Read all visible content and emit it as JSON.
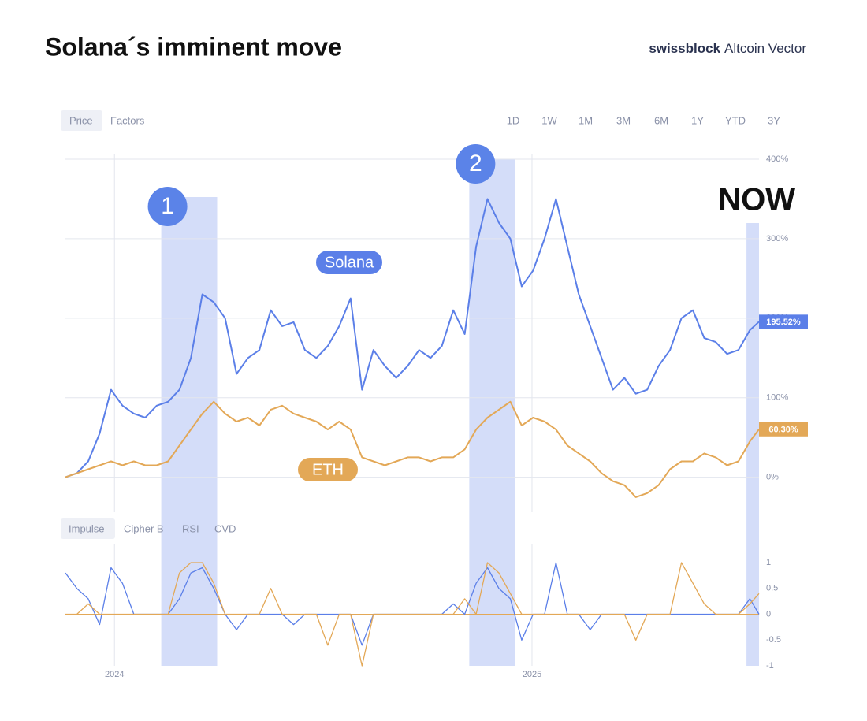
{
  "header": {
    "title": "Solana´s imminent move",
    "brand": "swissblock",
    "brand_product": "Altcoin Vector"
  },
  "tabs": {
    "price": [
      "Price",
      "Factors"
    ],
    "ranges": [
      "1D",
      "1W",
      "1M",
      "3M",
      "6M",
      "1Y",
      "YTD",
      "3Y"
    ],
    "indicators": [
      "Impulse",
      "Cipher B",
      "RSI",
      "CVD"
    ]
  },
  "chart_data": [
    {
      "type": "line",
      "x": [
        0,
        10,
        20,
        30,
        40,
        50,
        60,
        70,
        80,
        90,
        100,
        110,
        120,
        130,
        140,
        150,
        160,
        170,
        180,
        190,
        200,
        210,
        220,
        230,
        240,
        250,
        260,
        270,
        280,
        290,
        300,
        310,
        320,
        330,
        340,
        350,
        360,
        370,
        380,
        390,
        400,
        410,
        420,
        430,
        440,
        450,
        460,
        470,
        480,
        490,
        500,
        510,
        520,
        530,
        540,
        550,
        560,
        570,
        580,
        590,
        600,
        608
      ],
      "xlim": [
        0,
        608
      ],
      "xticks": [
        {
          "value": 43,
          "label": "2024"
        },
        {
          "value": 409,
          "label": "2025"
        }
      ],
      "ylim": [
        -40,
        400
      ],
      "yticks": [
        {
          "value": 0,
          "label": "0%"
        },
        {
          "value": 100,
          "label": "100%"
        },
        {
          "value": 200,
          "label": "200%"
        },
        {
          "value": 300,
          "label": "300%"
        },
        {
          "value": 400,
          "label": "400%"
        }
      ],
      "grid": true,
      "series": [
        {
          "name": "Solana",
          "color": "#5b7fe8",
          "values": [
            0,
            5,
            20,
            55,
            110,
            90,
            80,
            75,
            90,
            95,
            110,
            150,
            230,
            220,
            200,
            130,
            150,
            160,
            210,
            190,
            195,
            160,
            150,
            165,
            190,
            225,
            110,
            160,
            140,
            125,
            140,
            160,
            150,
            165,
            210,
            180,
            290,
            350,
            320,
            300,
            240,
            260,
            300,
            350,
            290,
            230,
            190,
            150,
            110,
            125,
            105,
            110,
            140,
            160,
            200,
            210,
            175,
            170,
            155,
            160,
            185,
            195.52
          ],
          "end_label": {
            "value": 195.52,
            "label": "195.52%"
          }
        },
        {
          "name": "ETH",
          "color": "#e3a857",
          "values": [
            0,
            5,
            10,
            15,
            20,
            15,
            20,
            15,
            15,
            20,
            40,
            60,
            80,
            95,
            80,
            70,
            75,
            65,
            85,
            90,
            80,
            75,
            70,
            60,
            70,
            60,
            25,
            20,
            15,
            20,
            25,
            25,
            20,
            25,
            25,
            35,
            60,
            75,
            85,
            95,
            65,
            75,
            70,
            60,
            40,
            30,
            20,
            5,
            -5,
            -10,
            -25,
            -20,
            -10,
            10,
            20,
            20,
            30,
            25,
            15,
            20,
            45,
            60.3
          ],
          "end_label": {
            "value": 60.3,
            "label": "60.30%"
          }
        }
      ],
      "annotations": [
        {
          "label": "1",
          "x": [
            84,
            133
          ]
        },
        {
          "label": "2",
          "x": [
            354,
            394
          ]
        },
        {
          "label": "NOW",
          "x": [
            597,
            608
          ]
        }
      ]
    },
    {
      "type": "line",
      "x": [
        0,
        10,
        20,
        30,
        40,
        50,
        60,
        70,
        80,
        90,
        100,
        110,
        120,
        130,
        140,
        150,
        160,
        170,
        180,
        190,
        200,
        210,
        220,
        230,
        240,
        250,
        260,
        270,
        280,
        290,
        300,
        310,
        320,
        330,
        340,
        350,
        360,
        370,
        380,
        390,
        400,
        410,
        420,
        430,
        440,
        450,
        460,
        470,
        480,
        490,
        500,
        510,
        520,
        530,
        540,
        550,
        560,
        570,
        580,
        590,
        600,
        608
      ],
      "xlim": [
        0,
        608
      ],
      "xticks": [
        {
          "value": 43,
          "label": "2024"
        },
        {
          "value": 409,
          "label": "2025"
        }
      ],
      "ylim": [
        -1,
        1
      ],
      "yticks": [
        1,
        0.5,
        0,
        -0.5,
        -1
      ],
      "series": [
        {
          "name": "Solana",
          "color": "#5b7fe8",
          "values": [
            0.8,
            0.5,
            0.3,
            -0.2,
            0.9,
            0.6,
            0,
            0,
            0,
            0,
            0.3,
            0.8,
            0.9,
            0.5,
            0,
            -0.3,
            0,
            0,
            0,
            0,
            -0.2,
            0,
            0,
            0,
            0,
            0,
            -0.6,
            0,
            0,
            0,
            0,
            0,
            0,
            0,
            0.2,
            0,
            0.6,
            0.9,
            0.5,
            0.3,
            -0.5,
            0,
            0,
            1,
            0,
            0,
            -0.3,
            0,
            0,
            0,
            0,
            0,
            0,
            0,
            0,
            0,
            0,
            0,
            0,
            0,
            0.3,
            0
          ]
        },
        {
          "name": "ETH",
          "color": "#e3a857",
          "values": [
            0,
            0,
            0.2,
            0,
            0,
            0,
            0,
            0,
            0,
            0,
            0.8,
            1,
            1,
            0.6,
            0,
            0,
            0,
            0,
            0.5,
            0,
            0,
            0,
            0,
            -0.6,
            0,
            0,
            -1,
            0,
            0,
            0,
            0,
            0,
            0,
            0,
            0,
            0.3,
            0,
            1,
            0.8,
            0.4,
            0,
            0,
            0,
            0,
            0,
            0,
            0,
            0,
            0,
            0,
            -0.5,
            0,
            0,
            0,
            1,
            0.6,
            0.2,
            0,
            0,
            0,
            0.2,
            0.4
          ]
        }
      ]
    }
  ]
}
